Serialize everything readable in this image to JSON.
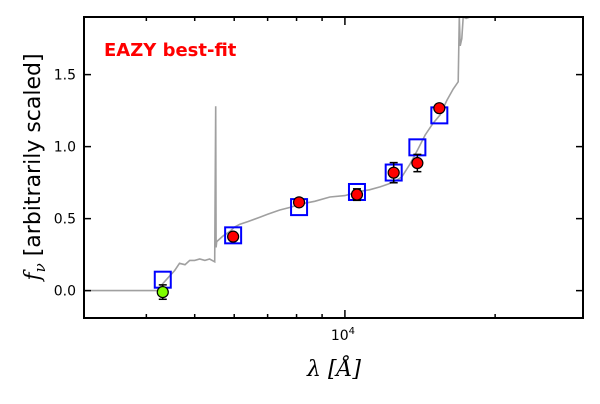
{
  "chart_data": {
    "type": "scatter",
    "annotation": "EAZY best-fit",
    "annotation_color": "#ff0000",
    "xlabel": "λ [Å]",
    "ylabel": "f_ν [arbitrarily scaled]",
    "ylabel_symbol": "f",
    "ylabel_sub": "ν",
    "ylabel_text": " [arbitrarily scaled]",
    "xlabel_symbol": "λ",
    "xlabel_text": "[Å]",
    "xscale": "log",
    "xlim": [
      3000,
      30000
    ],
    "ylim": [
      -0.19,
      1.9
    ],
    "x_major_ticks": [
      {
        "value": 10000,
        "label": "10",
        "exp": "4"
      }
    ],
    "x_minor_ticks": [
      4000,
      5000,
      6000,
      7000,
      8000,
      9000,
      20000
    ],
    "y_ticks": [
      {
        "value": 0,
        "label": "0.0"
      },
      {
        "value": 0.5,
        "label": "0.5"
      },
      {
        "value": 1.0,
        "label": "1.0"
      },
      {
        "value": 1.5,
        "label": "1.5"
      }
    ],
    "grid": false,
    "model_sed": {
      "color": "#a0a0a0",
      "wavelength": [
        3000,
        4211,
        4320,
        4452,
        4560,
        4662,
        4780,
        4886,
        5000,
        5116,
        5240,
        5357,
        5483,
        5508,
        5520,
        5533,
        5700,
        5875,
        6000,
        6152,
        6400,
        6751,
        7000,
        7406,
        7800,
        8122,
        8700,
        9330,
        10000,
        10718,
        11200,
        11757,
        12200,
        12600,
        13000,
        13508,
        14000,
        14476,
        15000,
        15515,
        16000,
        16480,
        16866,
        16950,
        17022,
        17150,
        17260,
        17500,
        17824,
        18200
      ],
      "flux": [
        0.0,
        0.0,
        0.05,
        0.1,
        0.14,
        0.19,
        0.18,
        0.21,
        0.21,
        0.22,
        0.21,
        0.22,
        0.2,
        1.28,
        0.3,
        0.34,
        0.38,
        0.41,
        0.44,
        0.46,
        0.48,
        0.51,
        0.53,
        0.56,
        0.58,
        0.6,
        0.62,
        0.65,
        0.66,
        0.69,
        0.7,
        0.72,
        0.74,
        0.76,
        0.79,
        0.88,
        0.98,
        1.08,
        1.16,
        1.22,
        1.32,
        1.4,
        1.45,
        1.9,
        1.7,
        1.75,
        1.9,
        1.89,
        1.9,
        1.9
      ]
    },
    "model_photometry": {
      "marker": "open-square",
      "color": "#0000ff",
      "wavelength": [
        4315,
        5970,
        8093,
        10572,
        12524,
        13970,
        15460
      ],
      "flux": [
        0.076,
        0.384,
        0.58,
        0.685,
        0.82,
        0.995,
        1.217
      ]
    },
    "observed": {
      "marker": "circle",
      "wavelength": [
        4315,
        5970,
        8093,
        10572,
        12524,
        13970,
        15460
      ],
      "flux": [
        -0.01,
        0.375,
        0.613,
        0.667,
        0.819,
        0.886,
        1.267
      ],
      "error": [
        0.05,
        0.02,
        0.02,
        0.04,
        0.07,
        0.06,
        0.02
      ],
      "colors": [
        "#7fff00",
        "#ff0000",
        "#ff0000",
        "#ff0000",
        "#ff0000",
        "#ff0000",
        "#ff0000"
      ]
    }
  }
}
